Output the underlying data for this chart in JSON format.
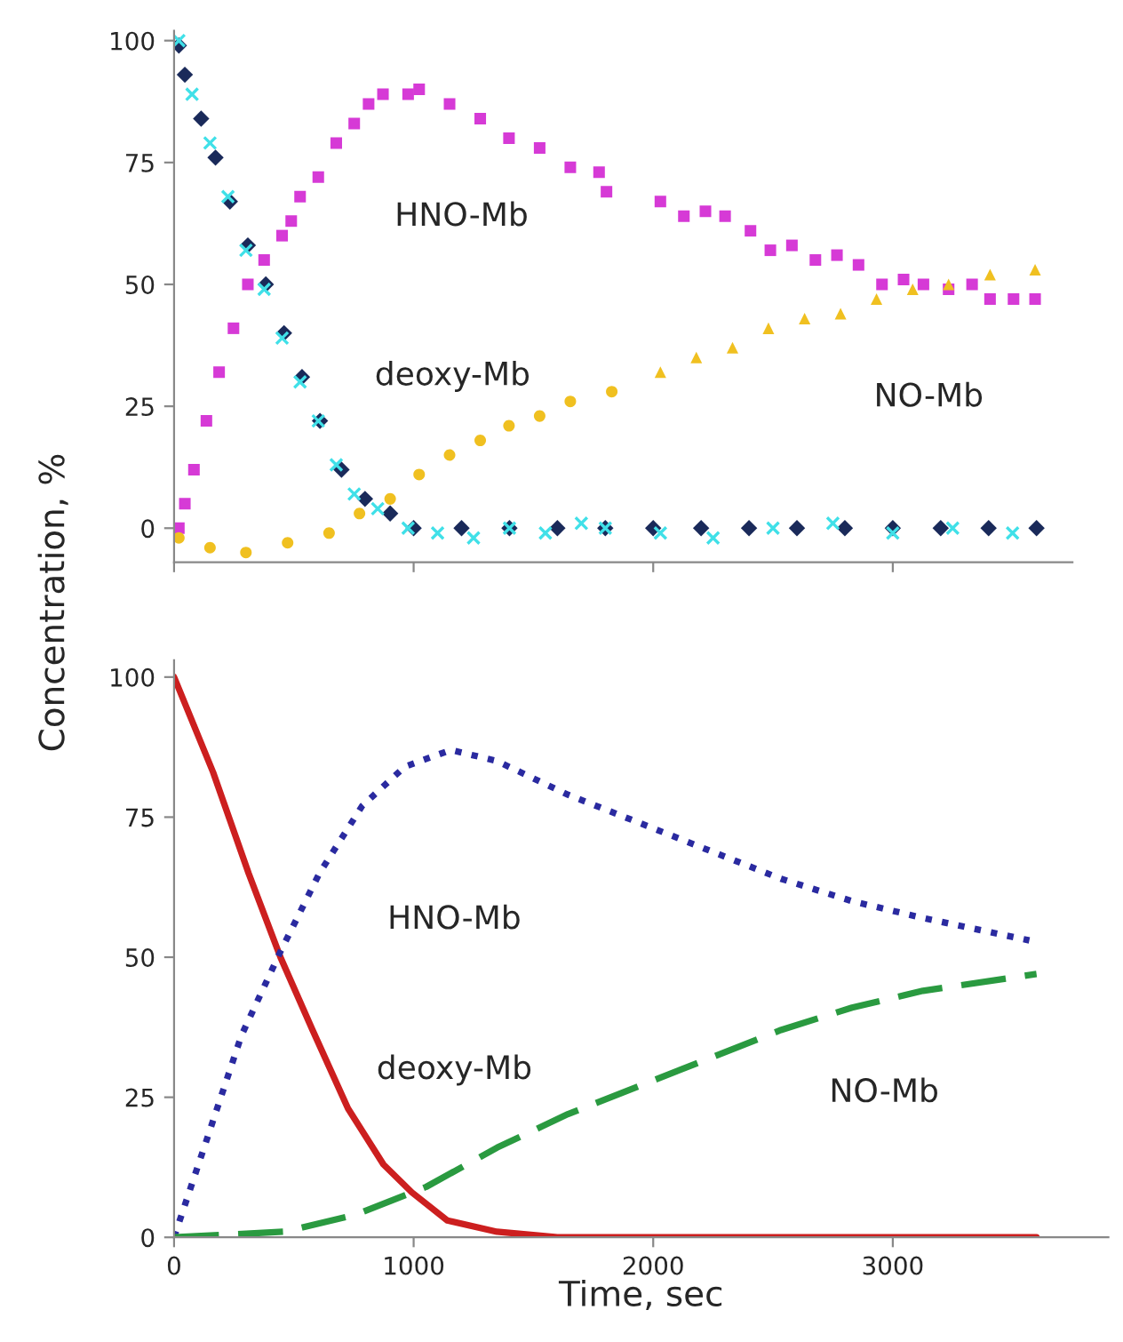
{
  "chart_data": [
    {
      "type": "scatter",
      "xlim": [
        0,
        3750
      ],
      "ylim": [
        -7,
        102
      ],
      "xticks": [
        0,
        1000,
        2000,
        3000
      ],
      "yticks": [
        0,
        25,
        50,
        75,
        100
      ],
      "tick_labels": "y",
      "grid": false,
      "legend": false,
      "annotations": [
        "HNO-Mb",
        "deoxy-Mb",
        "NO-Mb"
      ],
      "series": [
        {
          "color": "#d63ad6",
          "marker": "square",
          "x": [
            20,
            45,
            83,
            135,
            188,
            248,
            308,
            376,
            451,
            489,
            526,
            602,
            677,
            752,
            812,
            872,
            977,
            1023,
            1150,
            1278,
            1398,
            1526,
            1654,
            1774,
            1805,
            2030,
            2128,
            2218,
            2300,
            2406,
            2489,
            2579,
            2677,
            2767,
            2857,
            2955,
            3045,
            3128,
            3233,
            3331,
            3406,
            3504,
            3594
          ],
          "values": [
            0,
            5,
            12,
            22,
            32,
            41,
            50,
            55,
            60,
            63,
            68,
            72,
            79,
            83,
            87,
            89,
            89,
            90,
            87,
            84,
            80,
            78,
            74,
            73,
            69,
            67,
            64,
            65,
            64,
            61,
            57,
            58,
            55,
            56,
            54,
            50,
            51,
            50,
            49,
            50,
            47,
            47,
            47
          ]
        },
        {
          "color": "#f0c020",
          "marker": "circle",
          "x": [
            20,
            150,
            300,
            474,
            647,
            774,
            902,
            1023,
            1150,
            1278,
            1398,
            1526,
            1654,
            1827
          ],
          "values": [
            -2,
            -4,
            -5,
            -3,
            -1,
            3,
            6,
            11,
            15,
            18,
            21,
            23,
            26,
            28
          ]
        },
        {
          "color": "#f0c020",
          "marker": "triangle",
          "x": [
            2030,
            2180,
            2331,
            2481,
            2632,
            2782,
            2932,
            3083,
            3233,
            3406,
            3594
          ],
          "values": [
            32,
            35,
            37,
            41,
            43,
            44,
            47,
            49,
            50,
            52,
            53
          ]
        },
        {
          "color": "#1a2a5a",
          "marker": "diamond",
          "x": [
            20,
            45,
            113,
            173,
            233,
            308,
            383,
            459,
            534,
            609,
            699,
            797,
            902,
            1000,
            1200,
            1400,
            1600,
            1800,
            2000,
            2200,
            2400,
            2600,
            2800,
            3000,
            3200,
            3400,
            3600
          ],
          "values": [
            99,
            93,
            84,
            76,
            67,
            58,
            50,
            40,
            31,
            22,
            12,
            6,
            3,
            0,
            0,
            0,
            0,
            0,
            0,
            0,
            0,
            0,
            0,
            0,
            0,
            0,
            0
          ]
        },
        {
          "color": "#40e0e8",
          "marker": "cross",
          "x": [
            20,
            75,
            150,
            225,
            300,
            376,
            451,
            526,
            602,
            677,
            752,
            850,
            977,
            1100,
            1250,
            1400,
            1550,
            1700,
            1800,
            2030,
            2250,
            2500,
            2750,
            3000,
            3250,
            3500
          ],
          "values": [
            100,
            89,
            79,
            68,
            57,
            49,
            39,
            30,
            22,
            13,
            7,
            4,
            0,
            -1,
            -2,
            0,
            -1,
            1,
            0,
            -1,
            -2,
            0,
            1,
            -1,
            0,
            -1
          ]
        }
      ]
    },
    {
      "type": "line",
      "xlabel": "Time, sec",
      "ylabel": "Concentration, %",
      "xlim": [
        0,
        3900
      ],
      "ylim": [
        0,
        103
      ],
      "xticks": [
        0,
        1000,
        2000,
        3000
      ],
      "yticks": [
        0,
        25,
        50,
        75,
        100
      ],
      "grid": false,
      "legend": false,
      "annotations": [
        "HNO-Mb",
        "deoxy-Mb",
        "NO-Mb"
      ],
      "series": [
        {
          "color": "#cc1f1f",
          "line_style": "solid",
          "x": [
            0,
            163,
            311,
            444,
            578,
            726,
            874,
            993,
            1141,
            1348,
            1600,
            2000,
            3000,
            3600
          ],
          "values": [
            100,
            83,
            65,
            50,
            37,
            23,
            13,
            8,
            3,
            1,
            0,
            0,
            0,
            0
          ]
        },
        {
          "color": "#2a2aa0",
          "line_style": "dotted",
          "x": [
            0,
            133,
            281,
            444,
            607,
            785,
            963,
            1156,
            1348,
            1644,
            1941,
            2237,
            2533,
            2830,
            3126,
            3570
          ],
          "values": [
            0,
            17,
            36,
            51,
            65,
            77,
            84,
            87,
            85,
            79,
            74,
            69,
            64,
            60,
            57,
            53
          ]
        },
        {
          "color": "#2a9a40",
          "line_style": "dashed",
          "x": [
            0,
            459,
            756,
            1052,
            1348,
            1644,
            1941,
            2237,
            2533,
            2830,
            3126,
            3600
          ],
          "values": [
            0,
            1,
            4,
            9,
            16,
            22,
            27,
            32,
            37,
            41,
            44,
            47
          ]
        }
      ]
    }
  ]
}
